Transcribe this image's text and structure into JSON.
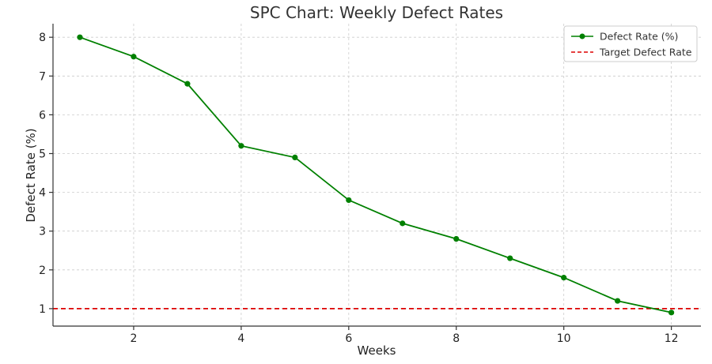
{
  "chart_data": {
    "type": "line",
    "title": "SPC Chart: Weekly Defect Rates",
    "xlabel": "Weeks",
    "ylabel": "Defect Rate (%)",
    "xlim": [
      0.5,
      12.55
    ],
    "ylim": [
      0.55,
      8.35
    ],
    "xticks": [
      2,
      4,
      6,
      8,
      10,
      12
    ],
    "yticks": [
      1,
      2,
      3,
      4,
      5,
      6,
      7,
      8
    ],
    "grid": true,
    "legend_position": "top-right",
    "series": [
      {
        "name": "Defect Rate (%)",
        "color": "#008000",
        "marker": "circle",
        "x": [
          1,
          2,
          3,
          4,
          5,
          6,
          7,
          8,
          9,
          10,
          11,
          12
        ],
        "y": [
          8.0,
          7.5,
          6.8,
          5.2,
          4.9,
          3.8,
          3.2,
          2.8,
          2.3,
          1.8,
          1.2,
          0.9
        ]
      }
    ],
    "reference_lines": [
      {
        "name": "Target Defect Rate",
        "y": 1.0,
        "color": "#dd0000",
        "style": "dashed"
      }
    ]
  }
}
